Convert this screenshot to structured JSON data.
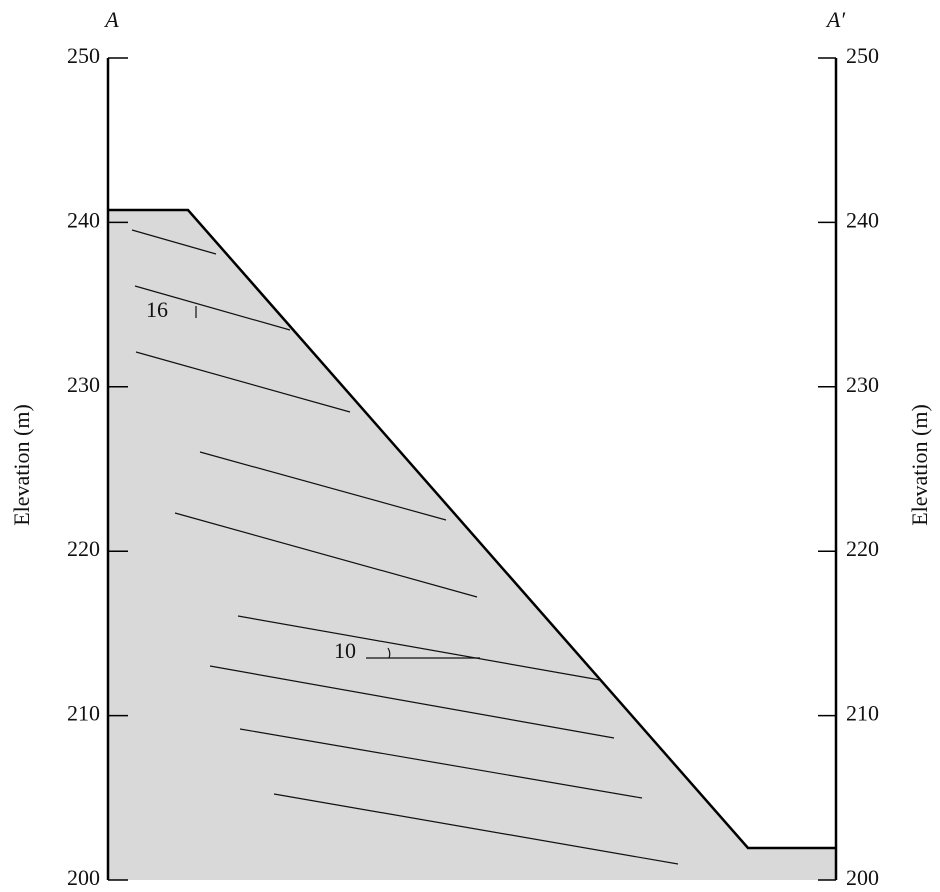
{
  "section": {
    "left_label": "A",
    "right_label": "A′",
    "axis_label": "Elevation (m)",
    "ylim": [
      200,
      250
    ],
    "yticks": [
      200,
      210,
      220,
      230,
      240,
      250
    ],
    "dip_labels": [
      "16",
      "10"
    ]
  }
}
